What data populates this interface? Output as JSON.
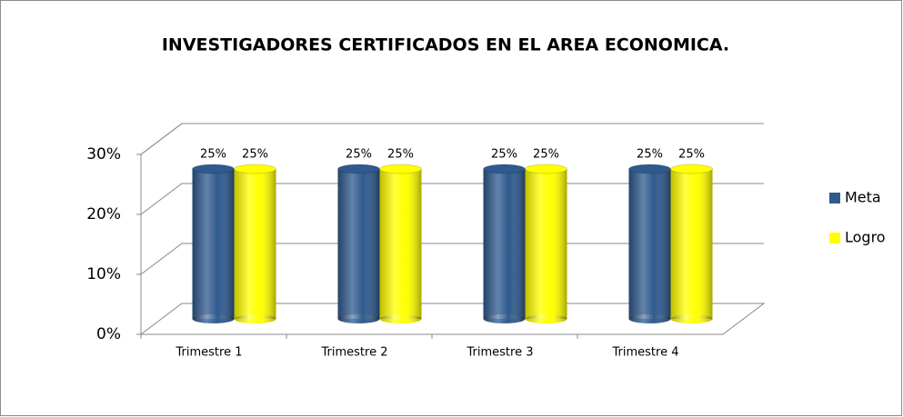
{
  "chart_data": {
    "type": "bar",
    "title": "INVESTIGADORES CERTIFICADOS EN EL AREA ECONOMICA.",
    "categories": [
      "Trimestre 1",
      "Trimestre 2",
      "Trimestre 3",
      "Trimestre 4"
    ],
    "series": [
      {
        "name": "Meta",
        "color": "#2f5a8e",
        "values": [
          25,
          25,
          25,
          25
        ],
        "value_labels": [
          "25%",
          "25%",
          "25%",
          "25%"
        ]
      },
      {
        "name": "Logro",
        "color": "#ffff00",
        "values": [
          25,
          25,
          25,
          25
        ],
        "value_labels": [
          "25%",
          "25%",
          "25%",
          "25%"
        ]
      }
    ],
    "ylim": [
      0,
      30
    ],
    "yticks": [
      {
        "value": 0,
        "label": "0%"
      },
      {
        "value": 10,
        "label": "10%"
      },
      {
        "value": 20,
        "label": "20%"
      },
      {
        "value": 30,
        "label": "30%"
      }
    ],
    "grid": true,
    "legend": "right"
  }
}
